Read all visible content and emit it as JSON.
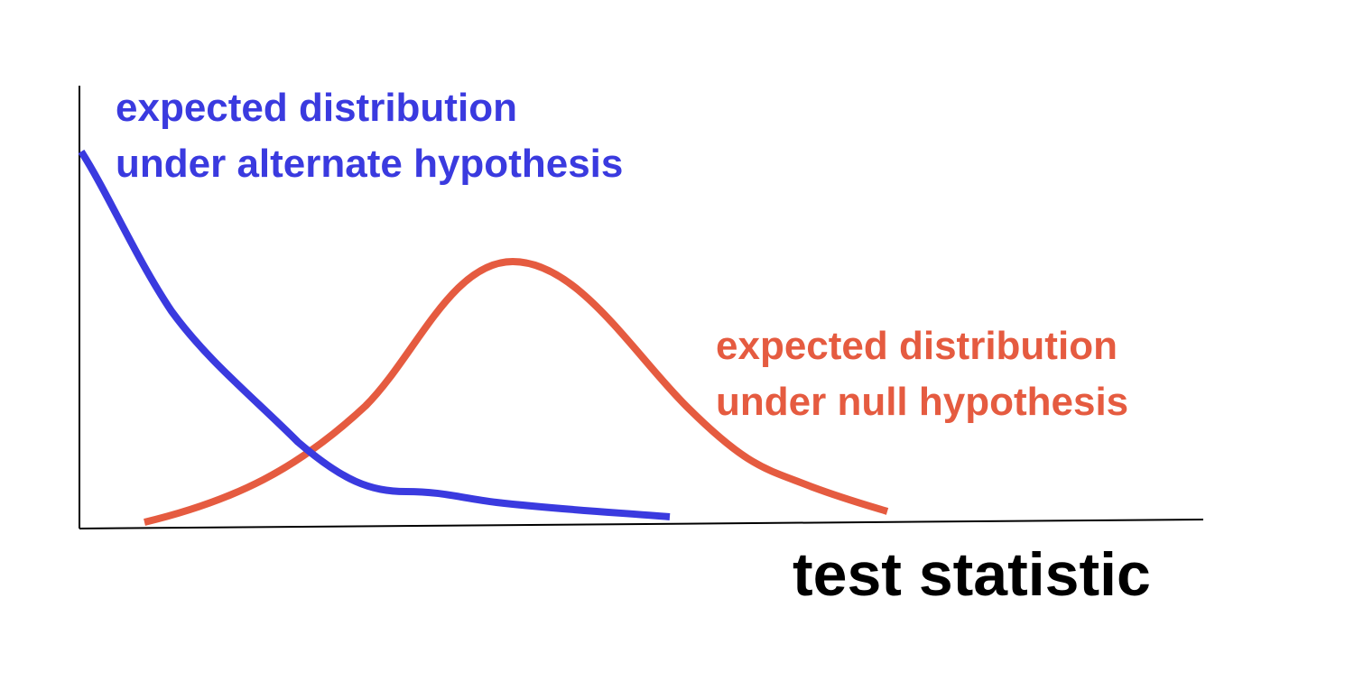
{
  "labels": {
    "alternate_line1": "expected distribution",
    "alternate_line2": "under alternate hypothesis",
    "null_line1": "expected distribution",
    "null_line2": "under null hypothesis",
    "x_axis": "test statistic"
  },
  "colors": {
    "alternate": "#3a3adf",
    "null": "#e55b40",
    "axis": "#000000",
    "axis_label": "#000000"
  }
}
